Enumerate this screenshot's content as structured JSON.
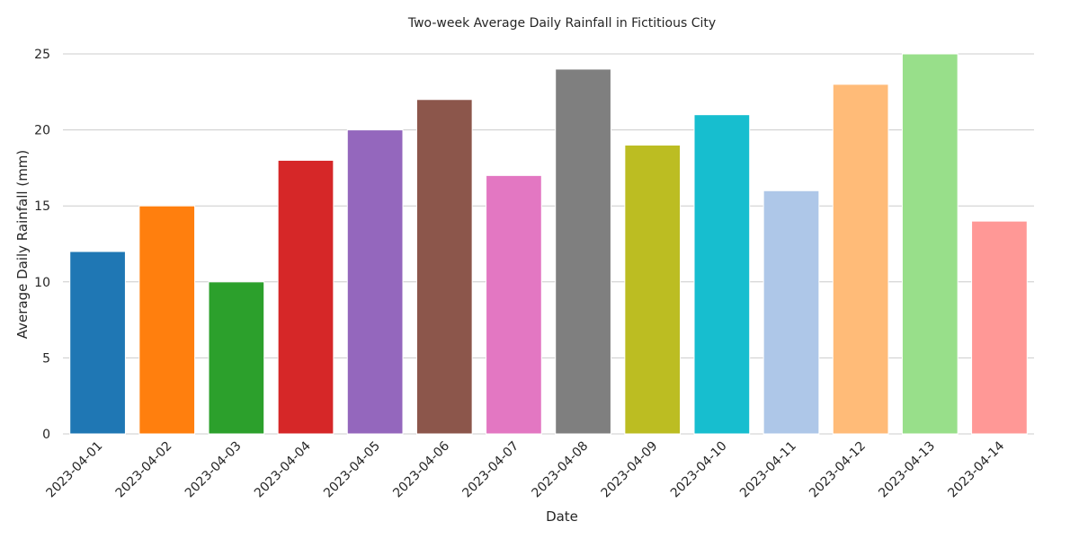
{
  "chart_data": {
    "type": "bar",
    "title": "Two-week Average Daily Rainfall in Fictitious City",
    "xlabel": "Date",
    "ylabel": "Average Daily Rainfall (mm)",
    "ylim": [
      0,
      25
    ],
    "yticks": [
      0,
      5,
      10,
      15,
      20,
      25
    ],
    "grid": "horizontal",
    "categories": [
      "2023-04-01",
      "2023-04-02",
      "2023-04-03",
      "2023-04-04",
      "2023-04-05",
      "2023-04-06",
      "2023-04-07",
      "2023-04-08",
      "2023-04-09",
      "2023-04-10",
      "2023-04-11",
      "2023-04-12",
      "2023-04-13",
      "2023-04-14"
    ],
    "values": [
      12,
      15,
      10,
      18,
      20,
      22,
      17,
      24,
      19,
      21,
      16,
      23,
      25,
      14
    ],
    "colors": [
      "#1f77b4",
      "#ff7f0e",
      "#2ca02c",
      "#d62728",
      "#9467bd",
      "#8c564b",
      "#e377c2",
      "#7f7f7f",
      "#bcbd22",
      "#17becf",
      "#aec7e8",
      "#ffbb78",
      "#98df8a",
      "#ff9896"
    ]
  }
}
